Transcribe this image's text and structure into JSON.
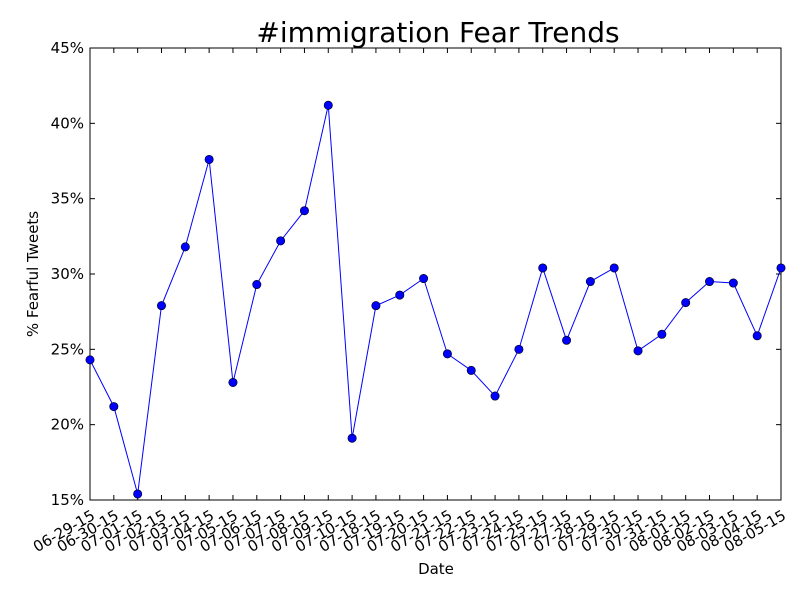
{
  "chart_data": {
    "type": "line",
    "title": "#immigration Fear Trends",
    "xlabel": "Date",
    "ylabel": "% Fearful Tweets",
    "ylim": [
      15,
      45
    ],
    "y_ticks": [
      "15%",
      "20%",
      "25%",
      "30%",
      "35%",
      "40%",
      "45%"
    ],
    "grid": false,
    "categories": [
      "06-29-15",
      "06-30-15",
      "07-01-15",
      "07-02-15",
      "07-03-15",
      "07-04-15",
      "07-05-15",
      "07-06-15",
      "07-07-15",
      "07-08-15",
      "07-09-15",
      "07-10-15",
      "07-18-15",
      "07-19-15",
      "07-20-15",
      "07-21-15",
      "07-22-15",
      "07-23-15",
      "07-24-15",
      "07-25-15",
      "07-27-15",
      "07-28-15",
      "07-29-15",
      "07-30-15",
      "07-31-15",
      "08-01-15",
      "08-02-15",
      "08-03-15",
      "08-04-15",
      "08-05-15"
    ],
    "series": [
      {
        "values": [
          24.3,
          21.2,
          15.4,
          27.9,
          31.8,
          37.6,
          22.8,
          29.3,
          32.2,
          34.2,
          41.2,
          19.1,
          27.9,
          28.6,
          29.7,
          24.7,
          23.6,
          21.9,
          25.0,
          30.4,
          25.6,
          29.5,
          30.4,
          24.9,
          26.0,
          28.1,
          29.5,
          29.4,
          25.9,
          30.4
        ],
        "color": "#0000ff"
      }
    ]
  }
}
